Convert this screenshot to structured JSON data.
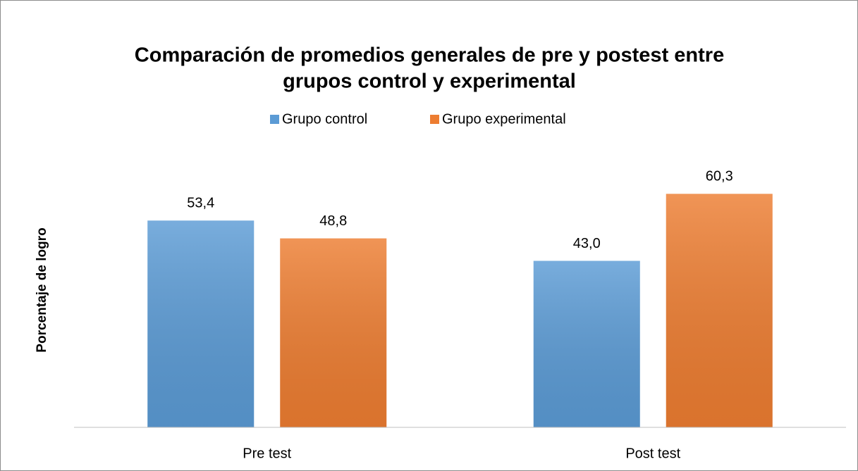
{
  "chart_data": {
    "type": "bar",
    "title": [
      "Comparación de promedios generales de pre y postest entre",
      "grupos control y experimental"
    ],
    "y_label": "Porcentaje de logro",
    "categories": [
      "Pre test",
      "Post test"
    ],
    "series": [
      {
        "name": "Grupo control",
        "color": "#5b9bd5",
        "values": [
          53.4,
          43.0
        ],
        "value_labels": [
          "53,4",
          "43,0"
        ]
      },
      {
        "name": "Grupo experimental",
        "color": "#ed7d31",
        "values": [
          48.8,
          60.3
        ],
        "value_labels": [
          "48,8",
          "60,3"
        ]
      }
    ],
    "ylim": [
      0,
      70
    ],
    "legend": "top"
  }
}
